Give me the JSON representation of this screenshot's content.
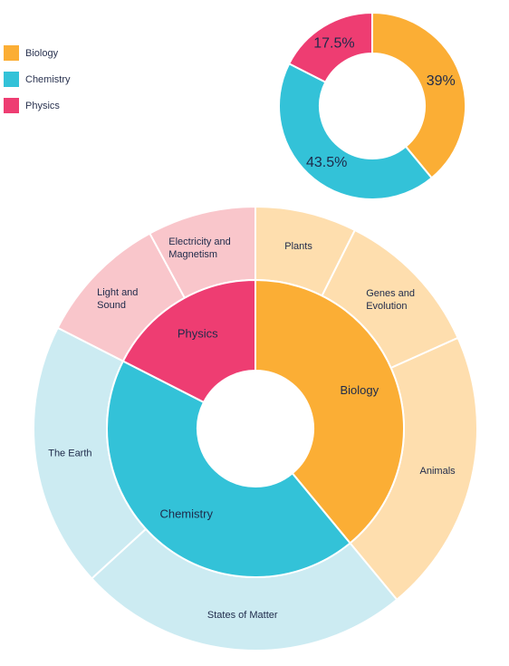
{
  "colors": {
    "biology": "#FBAE35",
    "chemistry": "#33C2D8",
    "physics": "#EE3D72",
    "biology_light": "#FEDEAE",
    "chemistry_light": "#CCEBF2",
    "physics_light": "#F9C6CB"
  },
  "legend": [
    {
      "label": "Biology",
      "color": "#FBAE35"
    },
    {
      "label": "Chemistry",
      "color": "#33C2D8"
    },
    {
      "label": "Physics",
      "color": "#EE3D72"
    }
  ],
  "chart_data": [
    {
      "type": "pie",
      "variant": "donut",
      "categories": [
        "Biology",
        "Chemistry",
        "Physics"
      ],
      "values": [
        39,
        43.5,
        17.5
      ],
      "labels": [
        "39%",
        "43.5%",
        "17.5%"
      ],
      "colors": [
        "#FBAE35",
        "#33C2D8",
        "#EE3D72"
      ],
      "legend": "top-left"
    },
    {
      "type": "pie",
      "variant": "sunburst",
      "inner": {
        "categories": [
          "Biology",
          "Chemistry",
          "Physics"
        ],
        "values": [
          39,
          43.5,
          17.5
        ],
        "colors": [
          "#FBAE35",
          "#33C2D8",
          "#EE3D72"
        ]
      },
      "outer": {
        "categories": [
          "Plants",
          "Genes and Evolution",
          "Animals",
          "States of Matter",
          "The Earth",
          "Light and Sound",
          "Electricity and Magnetism"
        ],
        "parents": [
          "Biology",
          "Biology",
          "Biology",
          "Chemistry",
          "Chemistry",
          "Physics",
          "Physics"
        ],
        "values": [
          7.4,
          10.9,
          20.7,
          24.2,
          19.3,
          9.6,
          7.9
        ],
        "label_lines": [
          [
            "Plants"
          ],
          [
            "Genes and",
            "Evolution"
          ],
          [
            "Animals"
          ],
          [
            "States of Matter"
          ],
          [
            "The Earth"
          ],
          [
            "Light and",
            "Sound"
          ],
          [
            "Electricity and",
            "Magnetism"
          ]
        ],
        "colors": [
          "#FEDEAE",
          "#FEDEAE",
          "#FEDEAE",
          "#CCEBF2",
          "#CCEBF2",
          "#F9C6CB",
          "#F9C6CB"
        ]
      }
    }
  ]
}
